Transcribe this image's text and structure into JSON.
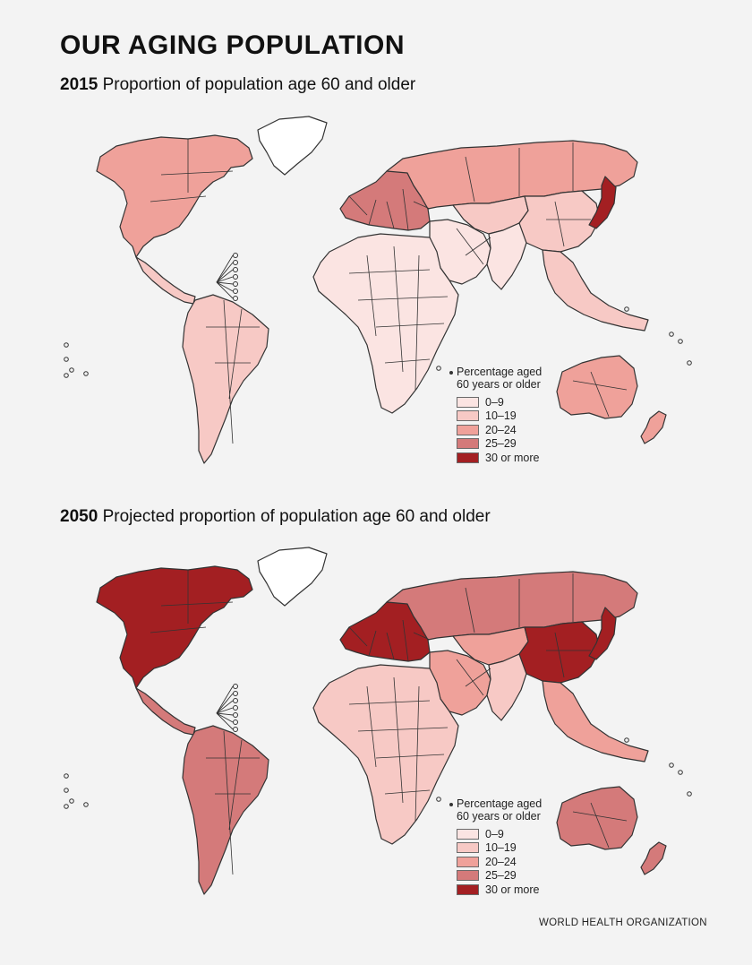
{
  "title": "OUR AGING POPULATION",
  "panels": [
    {
      "year": "2015",
      "subtitle": "Proportion of population age 60 and older"
    },
    {
      "year": "2050",
      "subtitle": "Projected proportion of population age 60 and older"
    }
  ],
  "legend": {
    "title_line1": "Percentage aged",
    "title_line2": "60 years or older",
    "items": [
      {
        "label": "0–9",
        "color": "#fbe4e2"
      },
      {
        "label": "10–19",
        "color": "#f7c9c5"
      },
      {
        "label": "20–24",
        "color": "#efa19a"
      },
      {
        "label": "25–29",
        "color": "#d47a7a"
      },
      {
        "label": "30 or more",
        "color": "#a31f22"
      }
    ]
  },
  "source": "WORLD HEALTH ORGANIZATION",
  "colors": {
    "c0": "#fbe4e2",
    "c1": "#f7c9c5",
    "c2": "#efa19a",
    "c3": "#d47a7a",
    "c4": "#a31f22",
    "greenland": "#ffffff"
  },
  "regions_2015": {
    "north_america": "c2",
    "greenland": "greenland",
    "central_america": "c1",
    "south_america": "c1",
    "europe": "c3",
    "russia": "c2",
    "africa": "c0",
    "middle_east": "c0",
    "central_asia": "c1",
    "china": "c1",
    "japan": "c4",
    "south_asia": "c0",
    "southeast_asia": "c1",
    "australia": "c2",
    "new_zealand": "c2"
  },
  "regions_2050": {
    "north_america": "c4",
    "greenland": "greenland",
    "central_america": "c3",
    "south_america": "c3",
    "europe": "c4",
    "russia": "c3",
    "africa": "c1",
    "middle_east": "c2",
    "central_asia": "c2",
    "china": "c4",
    "japan": "c4",
    "south_asia": "c1",
    "southeast_asia": "c2",
    "australia": "c3",
    "new_zealand": "c3"
  }
}
